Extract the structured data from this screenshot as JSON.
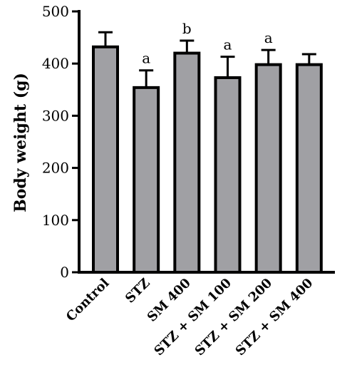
{
  "chart_data": {
    "type": "bar",
    "title": "",
    "xlabel": "",
    "ylabel": "Body weight (g)",
    "ylim": [
      0,
      500
    ],
    "yticks": [
      0,
      100,
      200,
      300,
      400,
      500
    ],
    "grid": false,
    "categories": [
      "Control",
      "STZ",
      "SM 400",
      "STZ + SM 100",
      "STZ + SM 200",
      "STZ + SM 400"
    ],
    "values": [
      432,
      354,
      420,
      373,
      398,
      398
    ],
    "errors": [
      28,
      33,
      24,
      40,
      28,
      20
    ],
    "significance": [
      "",
      "a",
      "b",
      "a",
      "a",
      ""
    ],
    "colors": {
      "bar_fill": "#a0a0a4",
      "bar_stroke": "#000000",
      "axis": "#000000"
    }
  }
}
